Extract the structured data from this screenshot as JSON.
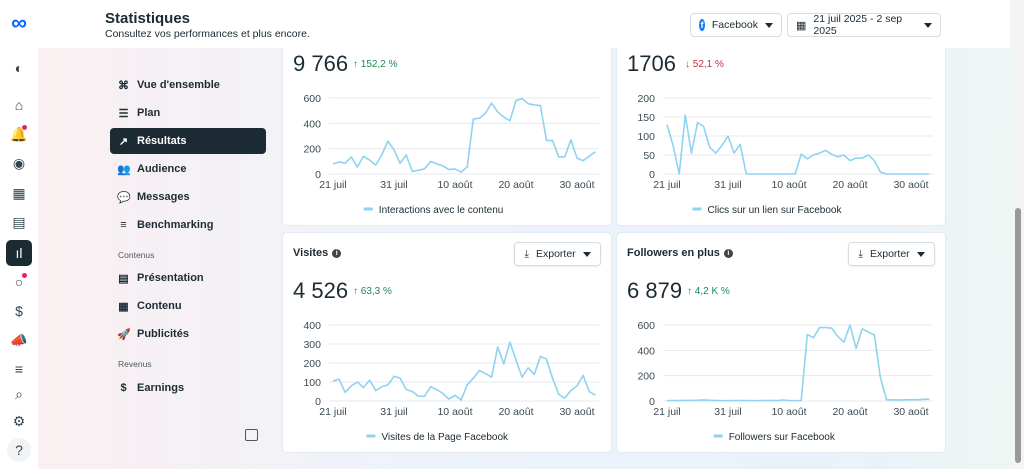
{
  "header": {
    "title": "Statistiques",
    "subtitle": "Consultez vos performances et plus encore.",
    "platform": "Facebook",
    "date_range": "21 juil 2025 - 2 sep 2025"
  },
  "rail": [
    "meta-logo",
    "account-icon",
    "home-icon",
    "bell-icon",
    "compass-icon",
    "calendar-icon",
    "content-icon",
    "insights-icon",
    "activity-icon",
    "dollar-icon",
    "megaphone-icon",
    "menu-icon",
    "search-icon",
    "gear-icon",
    "help-icon"
  ],
  "rail_help": "?",
  "nav": {
    "items": [
      {
        "label": "Vue d'ensemble",
        "icon": "overview-icon",
        "g": "⌘"
      },
      {
        "label": "Plan",
        "icon": "plan-icon",
        "g": "☰"
      },
      {
        "label": "Résultats",
        "icon": "results-icon",
        "g": "↗",
        "active": true
      },
      {
        "label": "Audience",
        "icon": "audience-icon",
        "g": "👥"
      },
      {
        "label": "Messages",
        "icon": "messages-icon",
        "g": "💬"
      },
      {
        "label": "Benchmarking",
        "icon": "benchmarking-icon",
        "g": "≡"
      }
    ],
    "section_contenus": "Contenus",
    "contenus": [
      {
        "label": "Présentation",
        "icon": "presentation-icon",
        "g": "▤"
      },
      {
        "label": "Contenu",
        "icon": "content-grid-icon",
        "g": "▦"
      },
      {
        "label": "Publicités",
        "icon": "rocket-icon",
        "g": "🚀"
      }
    ],
    "section_revenus": "Revenus",
    "revenus": [
      {
        "label": "Earnings",
        "icon": "dollar-circle-icon",
        "g": "$"
      }
    ]
  },
  "export_label": "Exporter",
  "x_dates": [
    "21 juil",
    "31 juil",
    "10 août",
    "20 août",
    "30 août"
  ],
  "chart_data": [
    {
      "type": "line",
      "title": "",
      "total": "9 766",
      "delta": "152,2 %",
      "trend": "up",
      "legend": "Interactions avec le contenu",
      "ylim": [
        0,
        600
      ],
      "yticks": [
        0,
        200,
        400,
        600
      ],
      "x_start": "21 juil 2025",
      "x_end": "2 sep 2025",
      "color": "#8fd3f0",
      "values": [
        80,
        95,
        85,
        135,
        55,
        140,
        110,
        70,
        150,
        260,
        190,
        85,
        150,
        20,
        30,
        40,
        100,
        80,
        65,
        35,
        40,
        15,
        55,
        435,
        440,
        480,
        560,
        490,
        450,
        420,
        580,
        595,
        555,
        545,
        540,
        265,
        265,
        135,
        135,
        270,
        125,
        105,
        140,
        175
      ]
    },
    {
      "type": "line",
      "title": "",
      "total": "1706",
      "delta": "52,1 %",
      "trend": "down",
      "legend": "Clics sur un lien sur Facebook",
      "ylim": [
        0,
        200
      ],
      "yticks": [
        0,
        50,
        100,
        150,
        200
      ],
      "x_start": "21 juil 2025",
      "x_end": "2 sep 2025",
      "color": "#8fd3f0",
      "values": [
        130,
        75,
        0,
        155,
        55,
        135,
        125,
        70,
        55,
        75,
        100,
        55,
        78,
        0,
        0,
        0,
        0,
        0,
        0,
        0,
        0,
        0,
        52,
        40,
        50,
        55,
        62,
        52,
        45,
        50,
        35,
        42,
        42,
        50,
        35,
        5,
        0,
        0,
        0,
        0,
        0,
        0,
        0,
        0
      ]
    },
    {
      "type": "line",
      "title": "Visites",
      "total": "4 526",
      "delta": "63,3 %",
      "trend": "up",
      "legend": "Visites de la Page Facebook",
      "ylim": [
        0,
        400
      ],
      "yticks": [
        0,
        100,
        200,
        300,
        400
      ],
      "x_start": "21 juil 2025",
      "x_end": "2 sep 2025",
      "color": "#8fd3f0",
      "values": [
        105,
        115,
        45,
        80,
        100,
        70,
        110,
        55,
        75,
        85,
        130,
        120,
        60,
        50,
        25,
        25,
        75,
        60,
        40,
        10,
        30,
        5,
        85,
        120,
        160,
        145,
        125,
        285,
        195,
        310,
        215,
        125,
        175,
        140,
        235,
        220,
        120,
        35,
        15,
        55,
        80,
        135,
        50,
        30
      ]
    },
    {
      "type": "line",
      "title": "Followers en plus",
      "total": "6 879",
      "delta": "4,2 K %",
      "trend": "up",
      "legend": "Followers sur Facebook",
      "ylim": [
        0,
        600
      ],
      "yticks": [
        0,
        200,
        400,
        600
      ],
      "x_start": "21 juil 2025",
      "x_end": "2 sep 2025",
      "color": "#8fd3f0",
      "values": [
        3,
        4,
        4,
        5,
        5,
        6,
        8,
        6,
        4,
        3,
        3,
        4,
        4,
        4,
        3,
        3,
        4,
        5,
        3,
        8,
        4,
        3,
        4,
        525,
        500,
        580,
        580,
        575,
        510,
        465,
        600,
        415,
        570,
        545,
        520,
        180,
        10,
        8,
        8,
        9,
        10,
        10,
        12,
        15
      ]
    }
  ]
}
